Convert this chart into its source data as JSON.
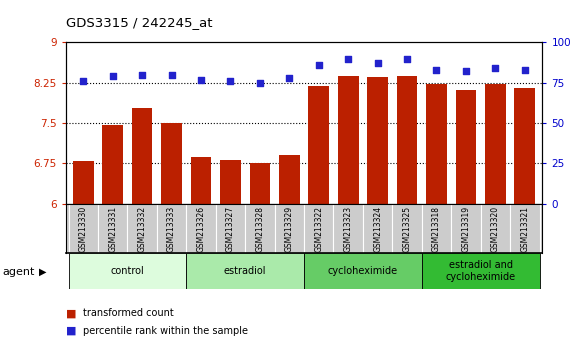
{
  "title": "GDS3315 / 242245_at",
  "samples": [
    "GSM213330",
    "GSM213331",
    "GSM213332",
    "GSM213333",
    "GSM213326",
    "GSM213327",
    "GSM213328",
    "GSM213329",
    "GSM213322",
    "GSM213323",
    "GSM213324",
    "GSM213325",
    "GSM213318",
    "GSM213319",
    "GSM213320",
    "GSM213321"
  ],
  "bar_values": [
    6.8,
    7.47,
    7.78,
    7.5,
    6.86,
    6.81,
    6.75,
    6.9,
    8.19,
    8.37,
    8.35,
    8.37,
    8.22,
    8.12,
    8.22,
    8.15
  ],
  "scatter_values": [
    76,
    79,
    80,
    80,
    77,
    76,
    75,
    78,
    86,
    90,
    87,
    90,
    83,
    82,
    84,
    83
  ],
  "ylim_left": [
    6,
    9
  ],
  "ylim_right": [
    0,
    100
  ],
  "yticks_left": [
    6,
    6.75,
    7.5,
    8.25,
    9
  ],
  "ytick_labels_left": [
    "6",
    "6.75",
    "7.5",
    "8.25",
    "9"
  ],
  "yticks_right": [
    0,
    25,
    50,
    75,
    100
  ],
  "ytick_labels_right": [
    "0",
    "25",
    "50",
    "75",
    "100%"
  ],
  "bar_color": "#bb2000",
  "scatter_color": "#2222cc",
  "bg_color": "#ffffff",
  "sample_bg_color": "#cccccc",
  "groups": [
    {
      "label": "control",
      "start": 0,
      "end": 4,
      "color": "#ddfcdd"
    },
    {
      "label": "estradiol",
      "start": 4,
      "end": 8,
      "color": "#aaeaaa"
    },
    {
      "label": "cycloheximide",
      "start": 8,
      "end": 12,
      "color": "#66cc66"
    },
    {
      "label": "estradiol and\ncycloheximide",
      "start": 12,
      "end": 16,
      "color": "#33bb33"
    }
  ],
  "agent_label": "agent",
  "legend_bar_label": "transformed count",
  "legend_scatter_label": "percentile rank within the sample",
  "left_tick_color": "#cc2200",
  "right_tick_color": "#0000cc"
}
